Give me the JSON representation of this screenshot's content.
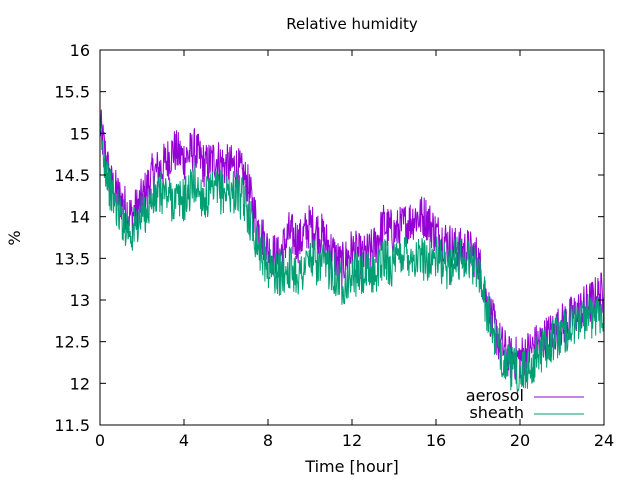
{
  "chart_data": {
    "type": "line",
    "title": "Relative humidity",
    "xlabel": "Time [hour]",
    "ylabel": "%",
    "xlim": [
      0,
      24
    ],
    "ylim": [
      11.5,
      16
    ],
    "xticks": [
      "0",
      "4",
      "8",
      "12",
      "16",
      "20",
      "24"
    ],
    "yticks": [
      "11.5",
      "12",
      "12.5",
      "13",
      "13.5",
      "14",
      "14.5",
      "15",
      "15.5",
      "16"
    ],
    "grid": false,
    "legend_position": "bottom-right",
    "x": [
      0,
      0.5,
      1,
      1.5,
      2,
      2.5,
      3,
      3.5,
      4,
      4.5,
      5,
      5.5,
      6,
      6.5,
      7,
      7.5,
      8,
      8.5,
      9,
      9.5,
      10,
      10.5,
      11,
      11.5,
      12,
      12.5,
      13,
      13.5,
      14,
      14.5,
      15,
      15.5,
      16,
      16.5,
      17,
      17.5,
      18,
      18.5,
      19,
      19.5,
      20,
      20.5,
      21,
      21.5,
      22,
      22.5,
      23,
      23.5,
      24
    ],
    "series": [
      {
        "name": "aerosol",
        "color": "#9400d3",
        "values": [
          15.1,
          14.4,
          14.2,
          14.0,
          14.2,
          14.5,
          14.6,
          14.8,
          14.7,
          14.8,
          14.6,
          14.7,
          14.6,
          14.6,
          14.4,
          13.9,
          13.6,
          13.5,
          13.8,
          13.7,
          13.9,
          13.8,
          13.6,
          13.4,
          13.6,
          13.5,
          13.6,
          13.9,
          13.8,
          13.9,
          14.0,
          14.0,
          13.8,
          13.7,
          13.6,
          13.6,
          13.5,
          12.9,
          12.5,
          12.3,
          12.3,
          12.4,
          12.5,
          12.6,
          12.7,
          12.8,
          12.9,
          13.0,
          13.1
        ]
      },
      {
        "name": "sheath",
        "color": "#009e73",
        "values": [
          15.0,
          14.3,
          14.0,
          13.8,
          14.0,
          14.2,
          14.3,
          14.2,
          14.2,
          14.4,
          14.2,
          14.3,
          14.3,
          14.3,
          14.1,
          13.7,
          13.4,
          13.3,
          13.4,
          13.3,
          13.5,
          13.4,
          13.4,
          13.2,
          13.3,
          13.3,
          13.3,
          13.5,
          13.4,
          13.6,
          13.5,
          13.5,
          13.5,
          13.4,
          13.5,
          13.5,
          13.4,
          12.8,
          12.4,
          12.2,
          12.1,
          12.2,
          12.4,
          12.5,
          12.6,
          12.7,
          12.8,
          12.8,
          12.9
        ]
      }
    ]
  }
}
